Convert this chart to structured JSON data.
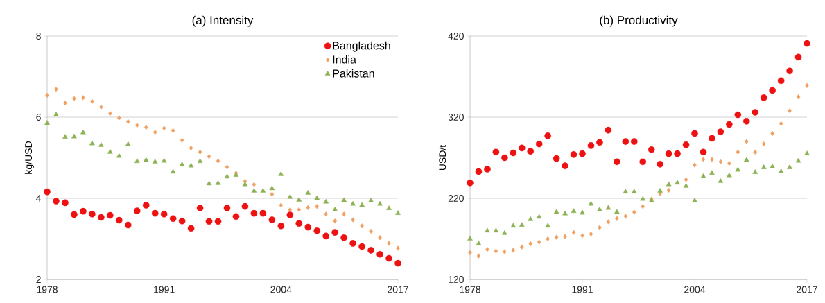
{
  "chart_data": [
    {
      "type": "scatter",
      "title": "(a) Intensity",
      "ylabel": "kg/USD",
      "x": [
        1978,
        1979,
        1980,
        1981,
        1982,
        1983,
        1984,
        1985,
        1986,
        1987,
        1988,
        1989,
        1990,
        1991,
        1992,
        1993,
        1994,
        1995,
        1996,
        1997,
        1998,
        1999,
        2000,
        2001,
        2002,
        2003,
        2004,
        2005,
        2006,
        2007,
        2008,
        2009,
        2010,
        2011,
        2012,
        2013,
        2014,
        2015,
        2016,
        2017
      ],
      "series": [
        {
          "name": "Bangladesh",
          "color": "#ee1111",
          "marker": "circle",
          "values": [
            4.16,
            3.93,
            3.89,
            3.6,
            3.68,
            3.61,
            3.53,
            3.58,
            3.46,
            3.34,
            3.69,
            3.83,
            3.63,
            3.61,
            3.5,
            3.44,
            3.26,
            3.76,
            3.43,
            3.43,
            3.76,
            3.55,
            3.8,
            3.63,
            3.63,
            3.47,
            3.32,
            3.59,
            3.38,
            3.29,
            3.2,
            3.07,
            3.16,
            3.03,
            2.89,
            2.81,
            2.72,
            2.62,
            2.52,
            2.4
          ]
        },
        {
          "name": "India",
          "color": "#f0a060",
          "marker": "diamond",
          "values": [
            6.54,
            6.69,
            6.35,
            6.46,
            6.48,
            6.39,
            6.25,
            6.09,
            5.98,
            5.89,
            5.8,
            5.75,
            5.63,
            5.73,
            5.67,
            5.43,
            5.24,
            5.14,
            5.03,
            4.92,
            4.77,
            4.62,
            4.42,
            4.34,
            null,
            4.1,
            3.83,
            3.72,
            3.72,
            3.77,
            3.8,
            3.61,
            3.44,
            3.61,
            3.47,
            3.32,
            3.19,
            3.03,
            2.89,
            2.77
          ]
        },
        {
          "name": "Pakistan",
          "color": "#8db255",
          "marker": "triangle",
          "values": [
            5.85,
            6.06,
            5.51,
            5.52,
            5.62,
            5.35,
            5.31,
            5.14,
            5.04,
            5.33,
            4.91,
            4.94,
            4.9,
            4.92,
            4.65,
            4.83,
            4.8,
            4.91,
            4.36,
            4.37,
            4.53,
            4.57,
            4.34,
            4.18,
            4.18,
            4.24,
            4.59,
            4.03,
            3.96,
            4.13,
            4.0,
            3.91,
            3.72,
            3.95,
            3.86,
            3.83,
            3.94,
            3.86,
            3.75,
            3.63
          ]
        }
      ],
      "xlim": [
        1978,
        2017
      ],
      "xticks": [
        1978,
        1991,
        2004,
        2017
      ],
      "ylim": [
        2,
        8
      ],
      "yticks": [
        2,
        4,
        6,
        8
      ],
      "grid": "y",
      "legend": "top right"
    },
    {
      "type": "scatter",
      "title": "(b) Productivity",
      "ylabel": "USD/t",
      "x": [
        1978,
        1979,
        1980,
        1981,
        1982,
        1983,
        1984,
        1985,
        1986,
        1987,
        1988,
        1989,
        1990,
        1991,
        1992,
        1993,
        1994,
        1995,
        1996,
        1997,
        1998,
        1999,
        2000,
        2001,
        2002,
        2003,
        2004,
        2005,
        2006,
        2007,
        2008,
        2009,
        2010,
        2011,
        2012,
        2013,
        2014,
        2015,
        2016,
        2017
      ],
      "series": [
        {
          "color": "#ee1111",
          "marker": "circle",
          "values": [
            239,
            253,
            256,
            277,
            270,
            276,
            282,
            278,
            287,
            297,
            269,
            260,
            274,
            275,
            285,
            289,
            304,
            265,
            290,
            290,
            265,
            280,
            262,
            275,
            275,
            286,
            300,
            277,
            294,
            302,
            311,
            323,
            315,
            326,
            344,
            353,
            365,
            377,
            394,
            411
          ]
        },
        {
          "color": "#f0a060",
          "marker": "diamond",
          "values": [
            153,
            149,
            157,
            155,
            154,
            156,
            160,
            164,
            166,
            170,
            172,
            173,
            178,
            174,
            176,
            184,
            191,
            195,
            198,
            203,
            210,
            219,
            226,
            230,
            null,
            243,
            261,
            268,
            268,
            265,
            263,
            277,
            290,
            277,
            287,
            300,
            312,
            328,
            345,
            359
          ]
        },
        {
          "color": "#8db255",
          "marker": "triangle",
          "values": [
            170,
            164,
            180,
            180,
            177,
            186,
            187,
            194,
            197,
            186,
            203,
            201,
            204,
            202,
            213,
            206,
            208,
            203,
            228,
            228,
            219,
            217,
            229,
            237,
            239,
            235,
            217,
            247,
            251,
            241,
            248,
            255,
            267,
            252,
            258,
            259,
            253,
            258,
            266,
            275
          ]
        }
      ],
      "xlim": [
        1978,
        2017
      ],
      "xticks": [
        1978,
        1991,
        2004,
        2017
      ],
      "ylim": [
        120,
        420
      ],
      "yticks": [
        120,
        220,
        320,
        420
      ],
      "grid": "y"
    }
  ]
}
